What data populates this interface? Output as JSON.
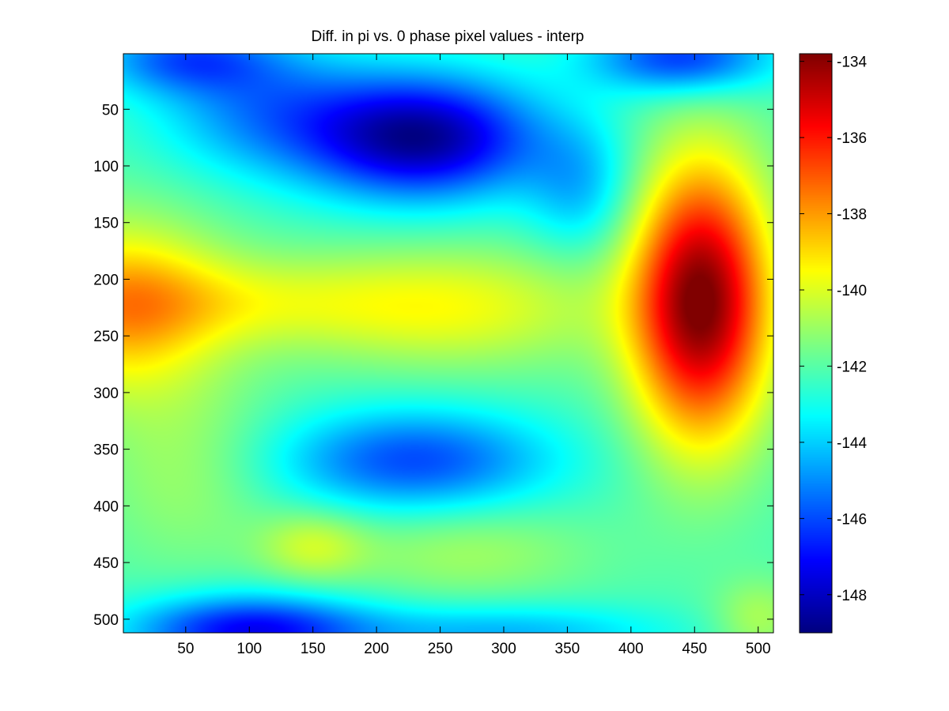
{
  "chart_data": {
    "type": "heatmap",
    "title": "Diff. in pi vs. 0 phase pixel values - interp",
    "xlabel": "",
    "ylabel": "",
    "colormap": "jet",
    "xlim": [
      1,
      512
    ],
    "ylim": [
      512,
      1
    ],
    "y_axis_direction": "top-to-bottom",
    "x_ticks": [
      50,
      100,
      150,
      200,
      250,
      300,
      350,
      400,
      450,
      500
    ],
    "y_ticks": [
      50,
      100,
      150,
      200,
      250,
      300,
      350,
      400,
      450,
      500
    ],
    "colorbar": {
      "range": [
        -149,
        -133.8
      ],
      "ticks": [
        -134,
        -136,
        -138,
        -140,
        -142,
        -144,
        -146,
        -148
      ]
    },
    "base_value": -142.2,
    "features": [
      {
        "x": 455,
        "y": 220,
        "sx": 38,
        "sy": 85,
        "amp": 8.5
      },
      {
        "x": 0,
        "y": 225,
        "sx": 55,
        "sy": 55,
        "amp": 3.8
      },
      {
        "x": 90,
        "y": 220,
        "sx": 90,
        "sy": 28,
        "amp": 1.6
      },
      {
        "x": 260,
        "y": 225,
        "sx": 90,
        "sy": 38,
        "amp": 2.4
      },
      {
        "x": 150,
        "y": 435,
        "sx": 30,
        "sy": 22,
        "amp": 1.8
      },
      {
        "x": 270,
        "y": 440,
        "sx": 70,
        "sy": 30,
        "amp": 1.3
      },
      {
        "x": 50,
        "y": 370,
        "sx": 50,
        "sy": 60,
        "amp": 1.2
      },
      {
        "x": 235,
        "y": 75,
        "sx": 65,
        "sy": 38,
        "amp": -6.5
      },
      {
        "x": 110,
        "y": 50,
        "sx": 60,
        "sy": 40,
        "amp": -2.6
      },
      {
        "x": 50,
        "y": 5,
        "sx": 50,
        "sy": 22,
        "amp": -3.2
      },
      {
        "x": 440,
        "y": 5,
        "sx": 50,
        "sy": 22,
        "amp": -4.2
      },
      {
        "x": 360,
        "y": 120,
        "sx": 30,
        "sy": 40,
        "amp": -2.0
      },
      {
        "x": 230,
        "y": 360,
        "sx": 75,
        "sy": 32,
        "amp": -3.8
      },
      {
        "x": 100,
        "y": 510,
        "sx": 65,
        "sy": 22,
        "amp": -5.0
      },
      {
        "x": 300,
        "y": 512,
        "sx": 90,
        "sy": 18,
        "amp": -2.2
      },
      {
        "x": 500,
        "y": 500,
        "sx": 25,
        "sy": 25,
        "amp": 1.5
      }
    ]
  }
}
